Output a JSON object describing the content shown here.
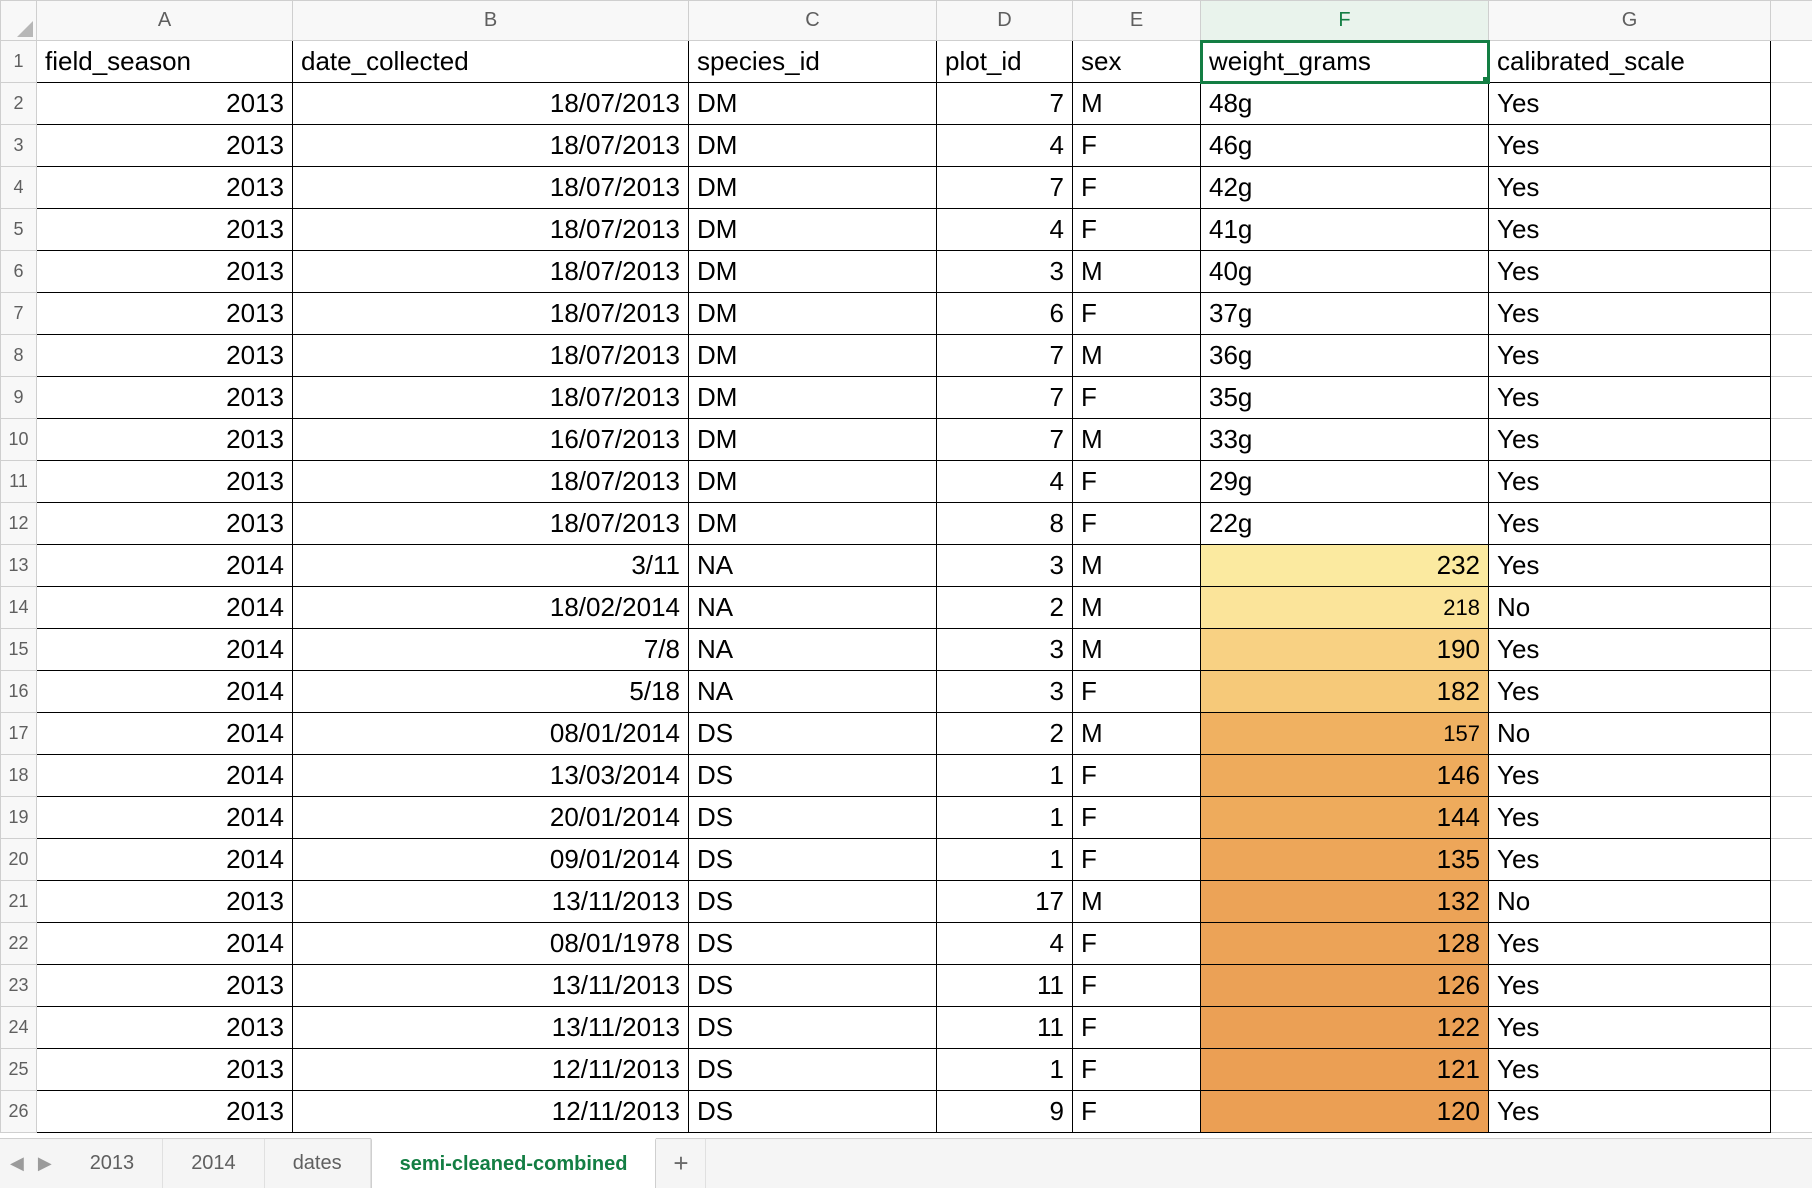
{
  "columns": [
    "A",
    "B",
    "C",
    "D",
    "E",
    "F",
    "G"
  ],
  "selected_column": "F",
  "selected_cell": {
    "row": 1,
    "col": "F"
  },
  "header_row": {
    "A": "field_season",
    "B": "date_collected",
    "C": "species_id",
    "D": "plot_id",
    "E": "sex",
    "F": "weight_grams",
    "G": "calibrated_scale"
  },
  "column_align": {
    "A": "right",
    "B": "right",
    "C": "left",
    "D": "right",
    "E": "left",
    "F": "left",
    "G": "left"
  },
  "rows": [
    {
      "n": 2,
      "A": "2013",
      "B": "18/07/2013",
      "C": "DM",
      "D": "7",
      "E": "M",
      "F": "48g",
      "F_align": "left",
      "F_bg": "#ffffff",
      "G": "Yes"
    },
    {
      "n": 3,
      "A": "2013",
      "B": "18/07/2013",
      "C": "DM",
      "D": "4",
      "E": "F",
      "F": "46g",
      "F_align": "left",
      "F_bg": "#ffffff",
      "G": "Yes"
    },
    {
      "n": 4,
      "A": "2013",
      "B": "18/07/2013",
      "C": "DM",
      "D": "7",
      "E": "F",
      "F": "42g",
      "F_align": "left",
      "F_bg": "#ffffff",
      "G": "Yes"
    },
    {
      "n": 5,
      "A": "2013",
      "B": "18/07/2013",
      "C": "DM",
      "D": "4",
      "E": "F",
      "F": "41g",
      "F_align": "left",
      "F_bg": "#ffffff",
      "G": "Yes"
    },
    {
      "n": 6,
      "A": "2013",
      "B": "18/07/2013",
      "C": "DM",
      "D": "3",
      "E": "M",
      "F": "40g",
      "F_align": "left",
      "F_bg": "#ffffff",
      "G": "Yes"
    },
    {
      "n": 7,
      "A": "2013",
      "B": "18/07/2013",
      "C": "DM",
      "D": "6",
      "E": "F",
      "F": "37g",
      "F_align": "left",
      "F_bg": "#ffffff",
      "G": "Yes"
    },
    {
      "n": 8,
      "A": "2013",
      "B": "18/07/2013",
      "C": "DM",
      "D": "7",
      "E": "M",
      "F": "36g",
      "F_align": "left",
      "F_bg": "#ffffff",
      "G": "Yes"
    },
    {
      "n": 9,
      "A": "2013",
      "B": "18/07/2013",
      "C": "DM",
      "D": "7",
      "E": "F",
      "F": "35g",
      "F_align": "left",
      "F_bg": "#ffffff",
      "G": "Yes"
    },
    {
      "n": 10,
      "A": "2013",
      "B": "16/07/2013",
      "C": "DM",
      "D": "7",
      "E": "M",
      "F": "33g",
      "F_align": "left",
      "F_bg": "#ffffff",
      "G": "Yes"
    },
    {
      "n": 11,
      "A": "2013",
      "B": "18/07/2013",
      "C": "DM",
      "D": "4",
      "E": "F",
      "F": "29g",
      "F_align": "left",
      "F_bg": "#ffffff",
      "G": "Yes"
    },
    {
      "n": 12,
      "A": "2013",
      "B": "18/07/2013",
      "C": "DM",
      "D": "8",
      "E": "F",
      "F": "22g",
      "F_align": "left",
      "F_bg": "#ffffff",
      "G": "Yes"
    },
    {
      "n": 13,
      "A": "2014",
      "B": "3/11",
      "C": "NA",
      "D": "3",
      "E": "M",
      "F": "232",
      "F_align": "right",
      "F_bg": "#fbeaa0",
      "F_fs": "26",
      "G": "Yes"
    },
    {
      "n": 14,
      "A": "2014",
      "B": "18/02/2014",
      "C": "NA",
      "D": "2",
      "E": "M",
      "F": "218",
      "F_align": "right",
      "F_bg": "#fbe49a",
      "F_fs": "22",
      "G": "No"
    },
    {
      "n": 15,
      "A": "2014",
      "B": "7/8",
      "C": "NA",
      "D": "3",
      "E": "M",
      "F": "190",
      "F_align": "right",
      "F_bg": "#f8d183",
      "F_fs": "26",
      "G": "Yes"
    },
    {
      "n": 16,
      "A": "2014",
      "B": "5/18",
      "C": "NA",
      "D": "3",
      "E": "F",
      "F": "182",
      "F_align": "right",
      "F_bg": "#f6c979",
      "F_fs": "26",
      "G": "Yes"
    },
    {
      "n": 17,
      "A": "2014",
      "B": "08/01/2014",
      "C": "DS",
      "D": "2",
      "E": "M",
      "F": "157",
      "F_align": "right",
      "F_bg": "#f0b161",
      "F_fs": "22",
      "G": "No"
    },
    {
      "n": 18,
      "A": "2014",
      "B": "13/03/2014",
      "C": "DS",
      "D": "1",
      "E": "F",
      "F": "146",
      "F_align": "right",
      "F_bg": "#eeab5c",
      "F_fs": "26",
      "G": "Yes"
    },
    {
      "n": 19,
      "A": "2014",
      "B": "20/01/2014",
      "C": "DS",
      "D": "1",
      "E": "F",
      "F": "144",
      "F_align": "right",
      "F_bg": "#eeab5c",
      "F_fs": "26",
      "G": "Yes"
    },
    {
      "n": 20,
      "A": "2014",
      "B": "09/01/2014",
      "C": "DS",
      "D": "1",
      "E": "F",
      "F": "135",
      "F_align": "right",
      "F_bg": "#eda659",
      "F_fs": "26",
      "G": "Yes"
    },
    {
      "n": 21,
      "A": "2013",
      "B": "13/11/2013",
      "C": "DS",
      "D": "17",
      "E": "M",
      "F": "132",
      "F_align": "right",
      "F_bg": "#eca357",
      "F_fs": "26",
      "G": "No"
    },
    {
      "n": 22,
      "A": "2014",
      "B": "08/01/1978",
      "C": "DS",
      "D": "4",
      "E": "F",
      "F": "128",
      "F_align": "right",
      "F_bg": "#eca357",
      "F_fs": "26",
      "G": "Yes"
    },
    {
      "n": 23,
      "A": "2013",
      "B": "13/11/2013",
      "C": "DS",
      "D": "11",
      "E": "F",
      "F": "126",
      "F_align": "right",
      "F_bg": "#eba156",
      "F_fs": "26",
      "G": "Yes"
    },
    {
      "n": 24,
      "A": "2013",
      "B": "13/11/2013",
      "C": "DS",
      "D": "11",
      "E": "F",
      "F": "122",
      "F_align": "right",
      "F_bg": "#eba055",
      "F_fs": "26",
      "G": "Yes"
    },
    {
      "n": 25,
      "A": "2013",
      "B": "12/11/2013",
      "C": "DS",
      "D": "1",
      "E": "F",
      "F": "121",
      "F_align": "right",
      "F_bg": "#eb9f54",
      "F_fs": "26",
      "G": "Yes"
    },
    {
      "n": 26,
      "A": "2013",
      "B": "12/11/2013",
      "C": "DS",
      "D": "9",
      "E": "F",
      "F": "120",
      "F_align": "right",
      "F_bg": "#eb9f54",
      "F_fs": "26",
      "G": "Yes"
    }
  ],
  "tabs": {
    "prev_icon": "◀",
    "next_icon": "▶",
    "items": [
      "2013",
      "2014",
      "dates",
      "semi-cleaned-combined"
    ],
    "active": "semi-cleaned-combined",
    "add_label": "+"
  },
  "style": {
    "header_bg": "#f8f8f8",
    "header_border": "#cfcfcf",
    "cell_border": "#000000",
    "accent": "#137e43"
  }
}
